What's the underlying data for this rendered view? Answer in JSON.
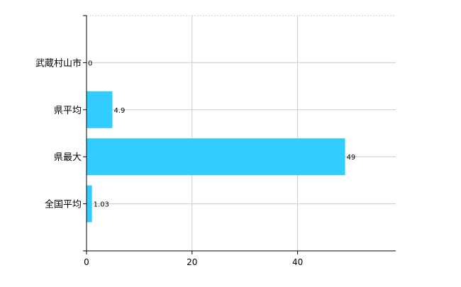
{
  "chart_data": {
    "type": "bar",
    "orientation": "horizontal",
    "categories": [
      "武蔵村山市",
      "県平均",
      "県最大",
      "全国平均"
    ],
    "values": [
      0,
      4.9,
      49,
      1.03
    ],
    "value_labels": [
      "0",
      "4.9",
      "49",
      "1.03"
    ],
    "x_ticks": [
      0,
      20,
      40
    ],
    "xlim": [
      0,
      58.6
    ],
    "grid": true,
    "bar_color": "#33ccff",
    "title": "",
    "xlabel": "",
    "ylabel": ""
  }
}
